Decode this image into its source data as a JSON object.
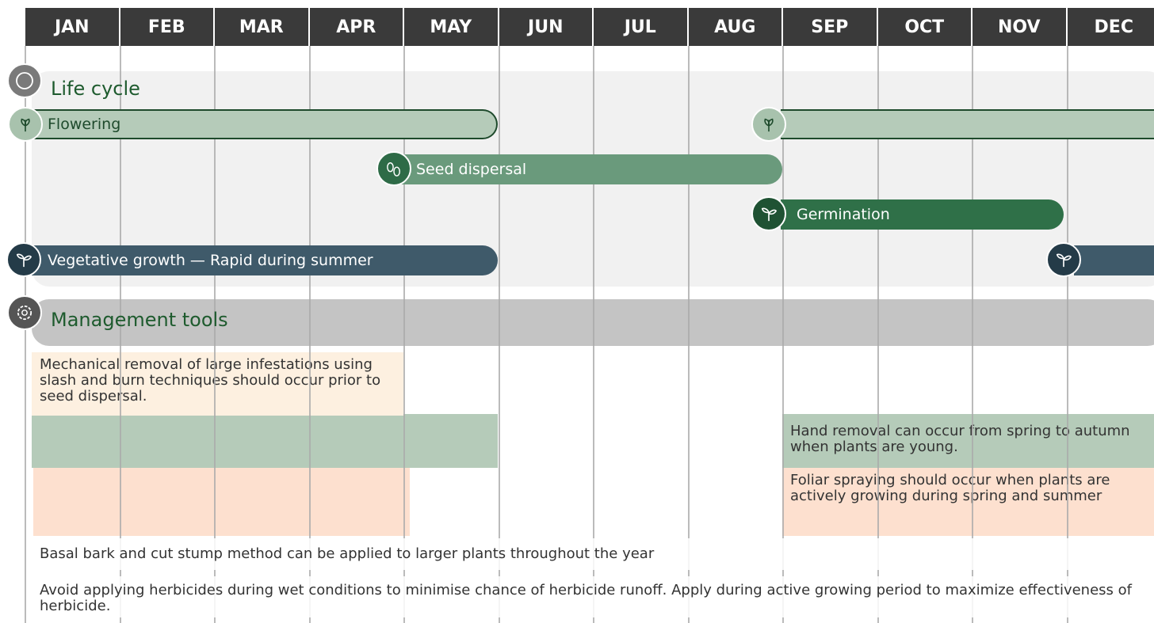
{
  "months": [
    "JAN",
    "FEB",
    "MAR",
    "APR",
    "MAY",
    "JUN",
    "JUL",
    "AUG",
    "SEP",
    "OCT",
    "NOV",
    "DEC"
  ],
  "life_cycle": {
    "title": "Life cycle",
    "bars": [
      "Flowering",
      "Seed dispersal",
      "Germination",
      "Vegetative growth — Rapid during summer"
    ]
  },
  "management": {
    "title": "Management tools",
    "items": [
      "Mechanical removal of large infestations using slash and burn techniques should occur prior to seed dispersal.",
      "Hand removal can occur from spring to autumn when plants are young.",
      "Foliar spraying should occur when plants are actively growing during spring and summer",
      "Basal bark and cut stump method can be applied to larger plants throughout the year",
      "Avoid applying herbicides during wet conditions to minimise chance of herbicide runoff. Apply during active growing period to maximize effectiveness of herbicide."
    ]
  }
}
